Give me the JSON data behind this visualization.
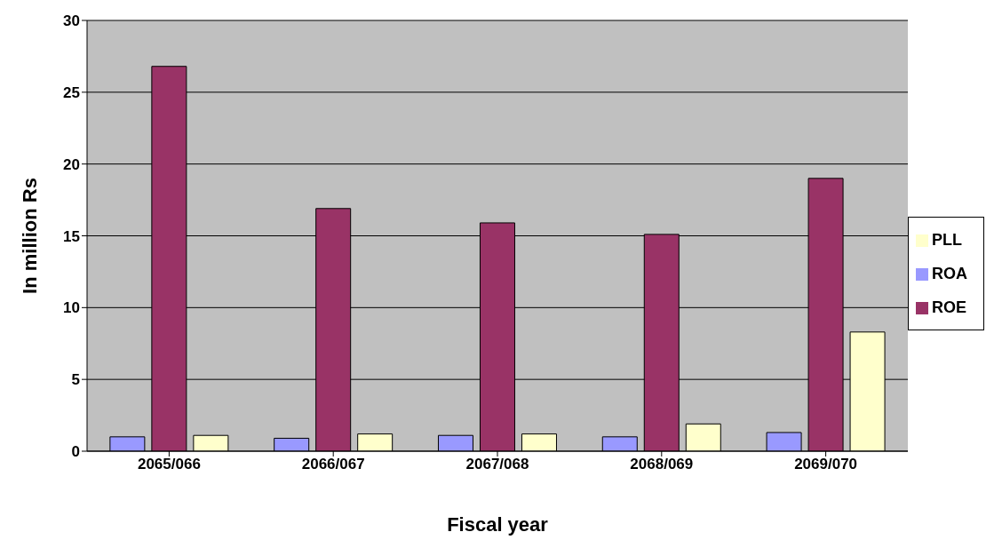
{
  "chart_data": {
    "type": "bar",
    "xlabel": "Fiscal year",
    "ylabel": "In million Rs",
    "categories": [
      "2065/066",
      "2066/067",
      "2067/068",
      "2068/069",
      "2069/070"
    ],
    "series": [
      {
        "name": "ROA",
        "color": "#9999ff",
        "values": [
          1.0,
          0.9,
          1.1,
          1.0,
          1.3
        ]
      },
      {
        "name": "ROE",
        "color": "#993366",
        "values": [
          26.8,
          16.9,
          15.9,
          15.1,
          19.0
        ]
      },
      {
        "name": "PLL",
        "color": "#ffffcc",
        "values": [
          1.1,
          1.2,
          1.2,
          1.9,
          8.3
        ]
      }
    ],
    "ylim": [
      0,
      30
    ],
    "yticks": [
      0,
      5,
      10,
      15,
      20,
      25,
      30
    ],
    "grid": "y",
    "legend": "right"
  }
}
